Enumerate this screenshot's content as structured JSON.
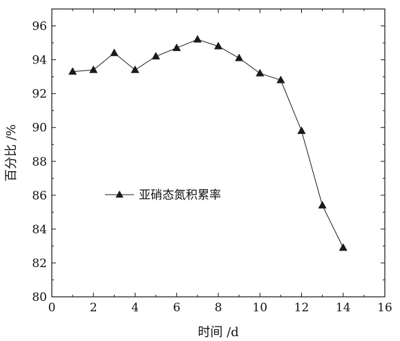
{
  "chart_data": {
    "type": "line",
    "title": "",
    "xlabel": "时间 /d",
    "ylabel": "百分比 /%",
    "xlim": [
      0,
      16
    ],
    "ylim": [
      80,
      97
    ],
    "xticks": [
      0,
      2,
      4,
      6,
      8,
      10,
      12,
      14,
      16
    ],
    "yticks": [
      80,
      82,
      84,
      86,
      88,
      90,
      92,
      94,
      96
    ],
    "grid": false,
    "legend_position": "center-left",
    "series": [
      {
        "name": "亚硝态氮积累率",
        "marker": "triangle",
        "color": "#1a1a1a",
        "x": [
          1,
          2,
          3,
          4,
          5,
          6,
          7,
          8,
          9,
          10,
          11,
          12,
          13,
          14
        ],
        "y": [
          93.3,
          93.4,
          94.4,
          93.4,
          94.2,
          94.7,
          95.2,
          94.8,
          94.1,
          93.2,
          92.8,
          89.8,
          85.4,
          82.9
        ]
      }
    ]
  }
}
